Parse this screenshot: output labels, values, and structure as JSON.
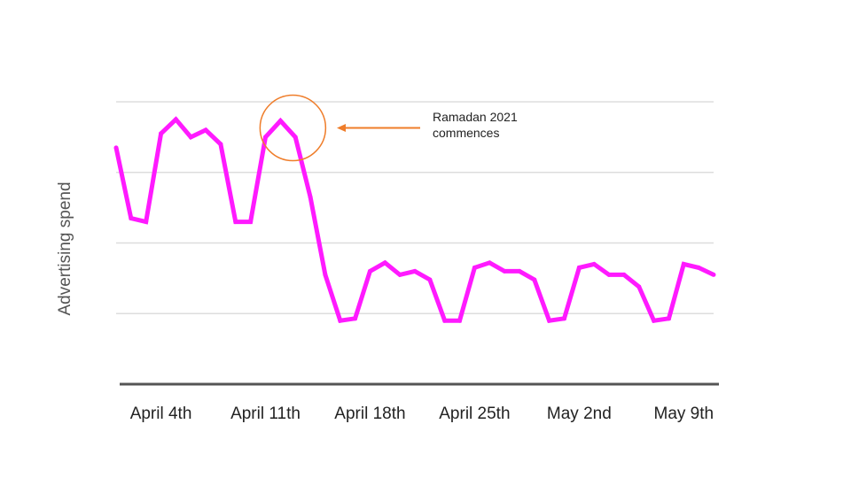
{
  "chart_data": {
    "type": "line",
    "title": "",
    "xlabel": "",
    "ylabel": "Advertising spend",
    "x_tick_labels": [
      "April 4th",
      "April 11th",
      "April 18th",
      "April 25th",
      "May 2nd",
      "May 9th"
    ],
    "y_ticks_labeled": false,
    "ylim": [
      0,
      4
    ],
    "grid": true,
    "series": [
      {
        "color": "#ff1aff",
        "values": [
          3.35,
          2.35,
          2.3,
          3.55,
          3.75,
          3.5,
          3.6,
          3.4,
          2.3,
          2.3,
          3.5,
          3.73,
          3.5,
          2.65,
          1.55,
          0.9,
          0.93,
          1.6,
          1.72,
          1.55,
          1.6,
          1.48,
          0.9,
          0.9,
          1.65,
          1.72,
          1.6,
          1.6,
          1.48,
          0.9,
          0.93,
          1.65,
          1.7,
          1.55,
          1.55,
          1.38,
          0.9,
          0.93,
          1.7,
          1.65,
          1.55
        ]
      }
    ],
    "annotations": [
      {
        "text_lines": [
          "Ramadan 2021",
          "commences"
        ],
        "target_index": 11,
        "color": "#ef7d2a"
      }
    ]
  }
}
